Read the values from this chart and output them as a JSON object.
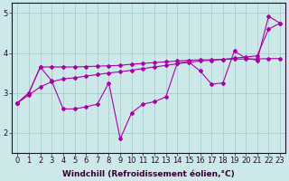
{
  "xlabel": "Windchill (Refroidissement éolien,°C)",
  "background_color": "#cce8e8",
  "grid_color": "#aacccc",
  "line_color": "#aa00aa",
  "x_min": -0.5,
  "x_max": 23.5,
  "y_min": 1.5,
  "y_max": 5.25,
  "yticks": [
    2,
    3,
    4,
    5
  ],
  "xticks": [
    0,
    1,
    2,
    3,
    4,
    5,
    6,
    7,
    8,
    9,
    10,
    11,
    12,
    13,
    14,
    15,
    16,
    17,
    18,
    19,
    20,
    21,
    22,
    23
  ],
  "series_flat_x": [
    0,
    1,
    2,
    3,
    4,
    5,
    6,
    7,
    8,
    9,
    10,
    11,
    12,
    13,
    14,
    15,
    16,
    17,
    18,
    19,
    20,
    21,
    22,
    23
  ],
  "series_flat_y": [
    2.75,
    3.0,
    3.65,
    3.65,
    3.65,
    3.65,
    3.66,
    3.67,
    3.68,
    3.69,
    3.72,
    3.74,
    3.76,
    3.78,
    3.8,
    3.82,
    3.83,
    3.83,
    3.84,
    3.85,
    3.85,
    3.85,
    3.86,
    3.86
  ],
  "series_trend_x": [
    0,
    1,
    2,
    3,
    4,
    5,
    6,
    7,
    8,
    9,
    10,
    11,
    12,
    13,
    14,
    15,
    16,
    17,
    18,
    19,
    20,
    21,
    22,
    23
  ],
  "series_trend_y": [
    2.75,
    2.95,
    3.15,
    3.28,
    3.35,
    3.38,
    3.42,
    3.46,
    3.5,
    3.53,
    3.57,
    3.61,
    3.65,
    3.69,
    3.73,
    3.77,
    3.8,
    3.82,
    3.84,
    3.87,
    3.9,
    3.93,
    4.6,
    4.75
  ],
  "series_volatile_x": [
    0,
    1,
    2,
    3,
    4,
    5,
    6,
    7,
    8,
    9,
    10,
    11,
    12,
    13,
    14,
    15,
    16,
    17,
    18,
    19,
    20,
    21,
    22,
    23
  ],
  "series_volatile_y": [
    2.75,
    3.0,
    3.65,
    3.3,
    2.6,
    2.6,
    2.65,
    2.72,
    3.25,
    1.85,
    2.5,
    2.72,
    2.78,
    2.9,
    3.75,
    3.78,
    3.55,
    3.22,
    3.25,
    4.05,
    3.87,
    3.82,
    4.92,
    4.75
  ],
  "xlabel_fontsize": 6.5,
  "tick_fontsize": 6.0
}
